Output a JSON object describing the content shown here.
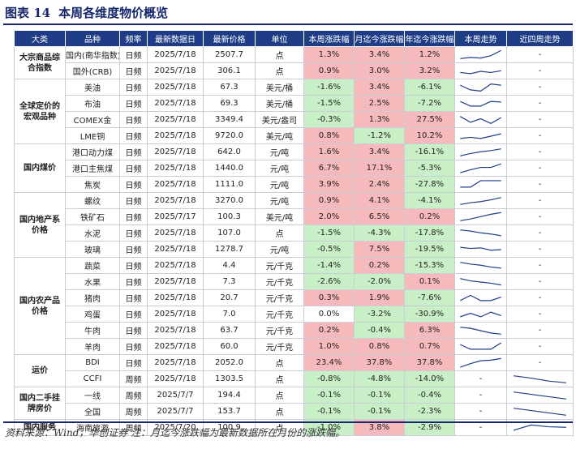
{
  "figure": {
    "label": "图表 14",
    "title": "本周各维度物价概览"
  },
  "headers": [
    "大类",
    "品种",
    "频率",
    "最新数据日",
    "最新价格",
    "单位",
    "本周涨跌幅",
    "月迄今涨跌幅",
    "年迄今涨跌幅",
    "本周走势",
    "近四周走势"
  ],
  "sections": [
    {
      "category": "大宗商品综合指数",
      "rows": [
        {
          "name": "国内(南华指数)",
          "freq": "日频",
          "date": "2025/7/18",
          "price": "2507.7",
          "unit": "点",
          "week": "1.3%",
          "month": "3.4%",
          "ytd": "1.2%",
          "spark": [
            0.2,
            0.3,
            0.25,
            0.45,
            0.9
          ],
          "spark4": "-"
        },
        {
          "name": "国外(CRB)",
          "freq": "日频",
          "date": "2025/7/18",
          "price": "306.1",
          "unit": "点",
          "week": "0.9%",
          "month": "3.0%",
          "ytd": "3.2%",
          "spark": [
            0.4,
            0.3,
            0.5,
            0.4,
            0.55
          ],
          "spark4": "-"
        }
      ]
    },
    {
      "category": "全球定价的宏观品种",
      "rows": [
        {
          "name": "美油",
          "freq": "日频",
          "date": "2025/7/18",
          "price": "67.3",
          "unit": "美元/桶",
          "week": "-1.6%",
          "month": "3.4%",
          "ytd": "-6.1%",
          "spark": [
            0.7,
            0.3,
            0.2,
            0.8,
            0.7
          ],
          "spark4": "-"
        },
        {
          "name": "布油",
          "freq": "日频",
          "date": "2025/7/18",
          "price": "69.3",
          "unit": "美元/桶",
          "week": "-1.5%",
          "month": "2.5%",
          "ytd": "-7.2%",
          "spark": [
            0.7,
            0.3,
            0.3,
            0.7,
            0.65
          ],
          "spark4": "-"
        },
        {
          "name": "COMEX金",
          "freq": "日频",
          "date": "2025/7/18",
          "price": "3349.4",
          "unit": "美元/盎司",
          "week": "-0.3%",
          "month": "1.3%",
          "ytd": "27.5%",
          "spark": [
            0.8,
            0.3,
            0.6,
            0.2,
            0.7
          ],
          "spark4": "-"
        },
        {
          "name": "LME铜",
          "freq": "日频",
          "date": "2025/7/18",
          "price": "9720.0",
          "unit": "美元/吨",
          "week": "0.8%",
          "month": "-1.2%",
          "ytd": "10.2%",
          "spark": [
            0.3,
            0.4,
            0.3,
            0.5,
            0.7
          ],
          "spark4": "-"
        }
      ]
    },
    {
      "category": "国内煤价",
      "rows": [
        {
          "name": "港口动力煤",
          "freq": "日频",
          "date": "2025/7/18",
          "price": "642.0",
          "unit": "元/吨",
          "week": "1.6%",
          "month": "3.4%",
          "ytd": "-16.1%",
          "spark": [
            0.2,
            0.4,
            0.55,
            0.65,
            0.8
          ],
          "spark4": "-"
        },
        {
          "name": "港口主焦煤",
          "freq": "日频",
          "date": "2025/7/18",
          "price": "1440.0",
          "unit": "元/吨",
          "week": "6.7%",
          "month": "17.1%",
          "ytd": "-5.3%",
          "spark": [
            0.15,
            0.4,
            0.6,
            0.6,
            0.9
          ],
          "spark4": "-"
        },
        {
          "name": "焦炭",
          "freq": "日频",
          "date": "2025/7/18",
          "price": "1111.0",
          "unit": "元/吨",
          "week": "3.9%",
          "month": "2.4%",
          "ytd": "-27.8%",
          "spark": [
            0.3,
            0.3,
            0.85,
            0.85,
            0.85
          ],
          "spark4": "-"
        }
      ]
    },
    {
      "category": "国内地产系价格",
      "rows": [
        {
          "name": "螺纹",
          "freq": "日频",
          "date": "2025/7/18",
          "price": "3270.0",
          "unit": "元/吨",
          "week": "0.9%",
          "month": "4.1%",
          "ytd": "-4.1%",
          "spark": [
            0.2,
            0.35,
            0.45,
            0.6,
            0.8
          ],
          "spark4": "-"
        },
        {
          "name": "铁矿石",
          "freq": "日频",
          "date": "2025/7/17",
          "price": "100.3",
          "unit": "美元/吨",
          "week": "2.0%",
          "month": "6.5%",
          "ytd": "0.2%",
          "spark": [
            0.2,
            0.35,
            0.55,
            0.75,
            0.9
          ],
          "spark4": "-"
        },
        {
          "name": "水泥",
          "freq": "日频",
          "date": "2025/7/18",
          "price": "107.0",
          "unit": "点",
          "week": "-1.5%",
          "month": "-4.3%",
          "ytd": "-17.8%",
          "spark": [
            0.8,
            0.7,
            0.55,
            0.45,
            0.3
          ],
          "spark4": "-"
        },
        {
          "name": "玻璃",
          "freq": "日频",
          "date": "2025/7/18",
          "price": "1278.7",
          "unit": "元/吨",
          "week": "-0.5%",
          "month": "7.5%",
          "ytd": "-19.5%",
          "spark": [
            0.7,
            0.6,
            0.65,
            0.45,
            0.5
          ],
          "spark4": "-"
        }
      ]
    },
    {
      "category": "国内农产品价格",
      "rows": [
        {
          "name": "蔬菜",
          "freq": "日频",
          "date": "2025/7/18",
          "price": "4.4",
          "unit": "元/千克",
          "week": "-1.4%",
          "month": "0.2%",
          "ytd": "-15.3%",
          "spark": [
            0.8,
            0.65,
            0.55,
            0.4,
            0.3
          ],
          "spark4": "-"
        },
        {
          "name": "水果",
          "freq": "日频",
          "date": "2025/7/18",
          "price": "7.3",
          "unit": "元/千克",
          "week": "-2.6%",
          "month": "-2.0%",
          "ytd": "0.1%",
          "spark": [
            0.8,
            0.6,
            0.5,
            0.4,
            0.25
          ],
          "spark4": "-"
        },
        {
          "name": "猪肉",
          "freq": "日频",
          "date": "2025/7/18",
          "price": "20.7",
          "unit": "元/千克",
          "week": "0.3%",
          "month": "1.9%",
          "ytd": "-7.6%",
          "spark": [
            0.3,
            0.75,
            0.3,
            0.3,
            0.6
          ],
          "spark4": "-"
        },
        {
          "name": "鸡蛋",
          "freq": "日频",
          "date": "2025/7/18",
          "price": "7.0",
          "unit": "元/千克",
          "week": "0.0%",
          "month": "-3.2%",
          "ytd": "-30.9%",
          "spark": [
            0.3,
            0.6,
            0.3,
            0.7,
            0.4
          ],
          "spark4": "-"
        },
        {
          "name": "牛肉",
          "freq": "日频",
          "date": "2025/7/18",
          "price": "63.7",
          "unit": "元/千克",
          "week": "0.2%",
          "month": "-0.4%",
          "ytd": "6.3%",
          "spark": [
            0.8,
            0.7,
            0.5,
            0.3,
            0.2
          ],
          "spark4": "-"
        },
        {
          "name": "羊肉",
          "freq": "日频",
          "date": "2025/7/18",
          "price": "60.0",
          "unit": "元/千克",
          "week": "1.0%",
          "month": "0.8%",
          "ytd": "0.7%",
          "spark": [
            0.7,
            0.3,
            0.3,
            0.3,
            0.85
          ],
          "spark4": "-"
        }
      ]
    },
    {
      "category": "运价",
      "rows": [
        {
          "name": "BDI",
          "freq": "日频",
          "date": "2025/7/18",
          "price": "2052.0",
          "unit": "点",
          "week": "23.4%",
          "month": "37.8%",
          "ytd": "37.8%",
          "spark": [
            0.15,
            0.45,
            0.7,
            0.75,
            0.9
          ],
          "spark4": "-"
        },
        {
          "name": "CCFI",
          "freq": "周频",
          "date": "2025/7/18",
          "price": "1303.5",
          "unit": "点",
          "week": "-0.8%",
          "month": "-4.8%",
          "ytd": "-14.0%",
          "spark": "-",
          "spark4": [
            0.8,
            0.6,
            0.35,
            0.2
          ]
        }
      ]
    },
    {
      "category": "国内二手挂牌房价",
      "rows": [
        {
          "name": "一线",
          "freq": "周频",
          "date": "2025/7/7",
          "price": "194.4",
          "unit": "点",
          "week": "-0.1%",
          "month": "-0.1%",
          "ytd": "-0.4%",
          "spark": "-",
          "spark4": [
            0.8,
            0.6,
            0.4,
            0.2
          ]
        },
        {
          "name": "全国",
          "freq": "周频",
          "date": "2025/7/7",
          "price": "153.7",
          "unit": "点",
          "week": "-0.1%",
          "month": "-0.1%",
          "ytd": "-2.3%",
          "spark": "-",
          "spark4": [
            0.8,
            0.6,
            0.4,
            0.2
          ]
        }
      ]
    },
    {
      "category": "国内服务",
      "rows": [
        {
          "name": "海南旅游",
          "freq": "周频",
          "date": "2025/7/20",
          "price": "100.9",
          "unit": "点",
          "week": "-1.0%",
          "month": "3.8%",
          "ytd": "-2.9%",
          "spark": "-",
          "spark4": [
            0.3,
            0.75,
            0.6,
            0.55
          ]
        }
      ]
    }
  ],
  "colors": {
    "header": "#1f3d86",
    "up": "#f6b9bc",
    "down": "#c8efc6",
    "line": "#1f3d86",
    "title": "#16276b"
  },
  "footer": "资料来源：Wind，华创证券  注：月迄今涨跌幅为最新数据所在月份的涨跌幅。"
}
